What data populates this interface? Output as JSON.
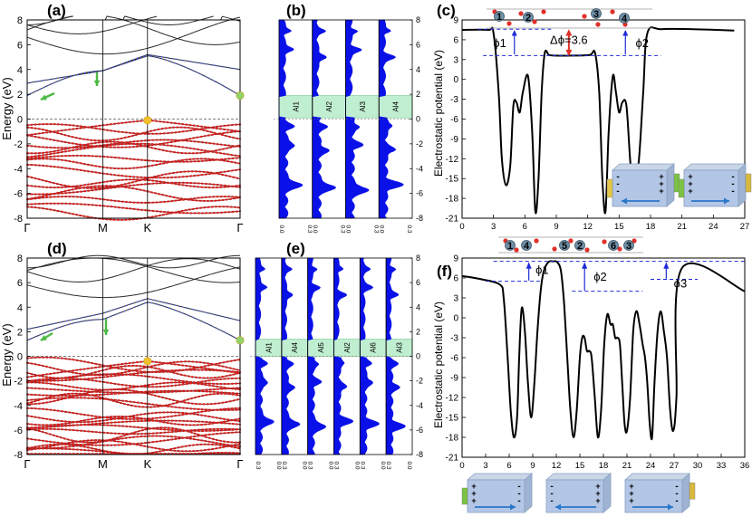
{
  "panels": {
    "a": {
      "label": "(a)",
      "ylabel": "Energy (eV)",
      "yticks": [
        "-8",
        "-6",
        "-4",
        "-2",
        "0",
        "2",
        "4",
        "6",
        "8"
      ],
      "kpoints": [
        "Γ",
        "M",
        "K",
        "Γ"
      ]
    },
    "b": {
      "label": "(b)",
      "layers": [
        "Al1",
        "Al2",
        "Al3",
        "Al4"
      ],
      "yticks": [
        "-8",
        "-6",
        "-4",
        "-2",
        "0",
        "2",
        "4",
        "6",
        "8"
      ],
      "xticks": [
        "0.0",
        "0.3",
        "0.0",
        "0.3",
        "0.0",
        "0.3",
        "0.0",
        "0.3"
      ]
    },
    "c": {
      "label": "(c)",
      "ylabel": "Electrostatic potential (eV)",
      "xticks": [
        "0",
        "3",
        "6",
        "9",
        "12",
        "15",
        "18",
        "21",
        "24",
        "27"
      ],
      "yticks": [
        "9",
        "6",
        "3",
        "0",
        "-3",
        "-6",
        "-9",
        "-12",
        "-15",
        "-18",
        "-21"
      ],
      "annotations": [
        "ϕ1",
        "Δϕ=3.6",
        "ϕ2"
      ],
      "atoms": [
        "1",
        "2",
        "3",
        "4"
      ]
    },
    "d": {
      "label": "(d)",
      "ylabel": "Energy (eV)",
      "yticks": [
        "-8",
        "-6",
        "-4",
        "-2",
        "0",
        "2",
        "4",
        "6",
        "8"
      ],
      "kpoints": [
        "Γ",
        "M",
        "K",
        "Γ"
      ]
    },
    "e": {
      "label": "(e)",
      "layers": [
        "Al1",
        "Al4",
        "Al5",
        "Al2",
        "Al6",
        "Al3"
      ],
      "yticks": [
        "-8",
        "-6",
        "-4",
        "-2",
        "0",
        "2",
        "4",
        "6",
        "8"
      ],
      "xticks": [
        "0.3",
        "0.0",
        "0.3",
        "0.0",
        "0.3",
        "0.0",
        "0.3",
        "0.0",
        "0.3",
        "0.0",
        "0.3",
        "0.0"
      ]
    },
    "f": {
      "label": "(f)",
      "ylabel": "Electrostatic potential (eV)",
      "xticks": [
        "0",
        "3",
        "6",
        "9",
        "12",
        "15",
        "18",
        "21",
        "24",
        "27",
        "30",
        "33",
        "36"
      ],
      "yticks": [
        "9",
        "6",
        "3",
        "0",
        "-3",
        "-6",
        "-9",
        "-12",
        "-15",
        "-18",
        "-21"
      ],
      "annotations": [
        "ϕ1",
        "ϕ2",
        "ϕ3"
      ],
      "atoms": [
        "1",
        "4",
        "5",
        "2",
        "6",
        "3"
      ]
    }
  },
  "chart_data": [
    {
      "panel": "a",
      "type": "line",
      "xlabel": "",
      "ylabel": "Energy (eV)",
      "ylim": [
        -8,
        8
      ],
      "x_labels": [
        "Γ",
        "M",
        "K",
        "Γ"
      ],
      "markers": [
        {
          "at": "K",
          "energy": -0.1,
          "color": "#f2c02e"
        },
        {
          "at": "Γ",
          "energy": 1.9,
          "color": "#8fd36a"
        }
      ]
    },
    {
      "panel": "b",
      "type": "area",
      "layers": [
        "Al1",
        "Al2",
        "Al3",
        "Al4"
      ],
      "ylim": [
        -8,
        8
      ],
      "xlim": [
        0.0,
        0.3
      ],
      "gap": [
        0.1,
        1.9
      ]
    },
    {
      "panel": "c",
      "type": "line",
      "xlabel": "",
      "ylabel": "Electrostatic potential (eV)",
      "xlim": [
        0,
        27
      ],
      "ylim": [
        -21,
        9
      ],
      "x": [
        0,
        2.5,
        3.0,
        3.5,
        3.8,
        4.2,
        4.6,
        4.9,
        5.2,
        5.5,
        5.8,
        6.3,
        6.7,
        7.0,
        7.3,
        7.6,
        7.9,
        8.3,
        8.8,
        10.5,
        12.2,
        12.7,
        13.1,
        13.4,
        13.7,
        14.0,
        14.4,
        14.7,
        15.0,
        15.3,
        15.7,
        16.1,
        16.5,
        16.9,
        17.3,
        17.7,
        19,
        22,
        26
      ],
      "y": [
        7.5,
        7.5,
        7,
        -2,
        -12,
        -16,
        -13,
        -4,
        -3.5,
        -5,
        -2,
        0.5,
        -8,
        -20,
        -15,
        -2,
        4,
        3.7,
        3.6,
        3.6,
        3.7,
        4,
        -2,
        -15,
        -20,
        -8,
        0.5,
        -2,
        -5,
        -3.5,
        -4,
        -13,
        -16,
        -12,
        -2,
        7,
        7.6,
        7.6,
        7.4
      ],
      "annotations": {
        "phi1": "ϕ1",
        "delta_phi": "Δϕ=3.6",
        "phi2": "ϕ2"
      }
    },
    {
      "panel": "d",
      "type": "line",
      "xlabel": "",
      "ylabel": "Energy (eV)",
      "ylim": [
        -8,
        8
      ],
      "x_labels": [
        "Γ",
        "M",
        "K",
        "Γ"
      ],
      "markers": [
        {
          "at": "K",
          "energy": -0.4,
          "color": "#f2c02e"
        },
        {
          "at": "Γ",
          "energy": 1.3,
          "color": "#8fd36a"
        }
      ]
    },
    {
      "panel": "e",
      "type": "area",
      "layers": [
        "Al1",
        "Al4",
        "Al5",
        "Al2",
        "Al6",
        "Al3"
      ],
      "ylim": [
        -8,
        8
      ],
      "xlim": [
        0.0,
        0.3
      ],
      "gap": [
        0.0,
        1.4
      ]
    },
    {
      "panel": "f",
      "type": "line",
      "xlabel": "",
      "ylabel": "Electrostatic potential (eV)",
      "xlim": [
        0,
        36
      ],
      "ylim": [
        -21,
        9
      ],
      "x": [
        0,
        2.5,
        4.8,
        5.3,
        5.8,
        6.2,
        6.6,
        7.0,
        7.3,
        7.6,
        8.0,
        8.4,
        8.8,
        9.2,
        9.6,
        10.0,
        10.4,
        11.0,
        11.6,
        12.1,
        12.6,
        13.0,
        13.4,
        13.8,
        14.2,
        14.6,
        15.0,
        15.3,
        15.6,
        15.9,
        16.2,
        16.5,
        16.9,
        17.3,
        17.7,
        18.1,
        18.5,
        18.9,
        19.2,
        19.5,
        19.8,
        20.1,
        20.4,
        20.7,
        21.0,
        21.4,
        21.8,
        22.2,
        22.6,
        23.0,
        23.3,
        23.6,
        23.9,
        24.2,
        24.5,
        24.9,
        25.3,
        25.7,
        26.1,
        26.5,
        26.9,
        27.3,
        28,
        36
      ],
      "y": [
        6.3,
        5.8,
        5,
        3,
        -6,
        -14,
        -18,
        -15,
        -5,
        1.5,
        -2,
        -10,
        -15,
        -10,
        -2,
        4,
        7,
        8.4,
        8.5,
        8.4,
        7,
        2,
        -6,
        -14,
        -18,
        -14,
        -6,
        -3,
        -3,
        -5,
        -5,
        -6,
        -12,
        -18,
        -14,
        -4,
        0.5,
        -1,
        -1,
        -3,
        -3,
        -4,
        -10,
        -16,
        -17,
        -12,
        -2,
        1,
        -1,
        -4,
        -6,
        -10,
        -16,
        -18,
        -10,
        -2,
        1,
        -2,
        -6,
        -14,
        -17,
        -12,
        7.5,
        4
      ],
      "annotations": {
        "phi1": "ϕ1",
        "phi2": "ϕ2",
        "phi3": "ϕ3"
      }
    }
  ]
}
